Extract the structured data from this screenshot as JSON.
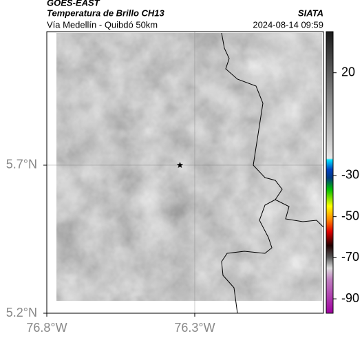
{
  "header": {
    "title": "GOES-EAST",
    "subtitle": "Temperatura de Brillo CH13",
    "source": "SIATA",
    "route": "Vía Medellín - Quibdó 50km",
    "timestamp": "2024-08-14 09:59"
  },
  "map": {
    "xlim": [
      -76.8,
      -75.865
    ],
    "ylim": [
      5.2,
      6.151
    ],
    "xticks": [
      {
        "value": -76.8,
        "label": "76.8°W"
      },
      {
        "value": -76.3,
        "label": "76.3°W"
      }
    ],
    "yticks": [
      {
        "value": 5.2,
        "label": "5.2°N"
      },
      {
        "value": 5.7,
        "label": "5.7°N"
      }
    ],
    "grid": true,
    "marker": {
      "lon": -76.35,
      "lat": 5.7
    }
  },
  "colorbar": {
    "clim": [
      -97,
      40
    ],
    "ticks": [
      20,
      -30,
      -50,
      -70,
      -90
    ]
  }
}
